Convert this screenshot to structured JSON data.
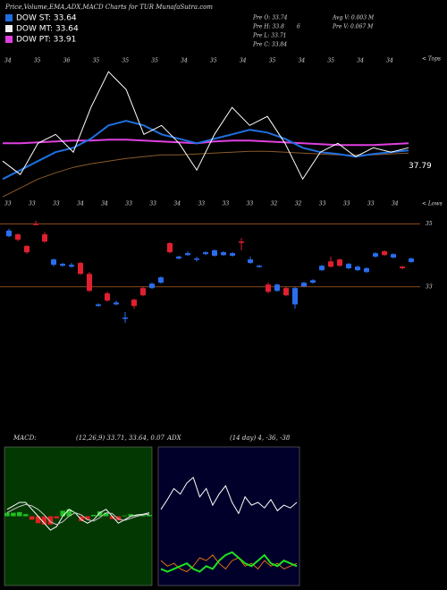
{
  "header": {
    "title": "Price,Volume,EMA,ADX,MACD Charts for TUR MunafaSutra.com",
    "legend": [
      {
        "label": "DOW ST: 33.64",
        "color": "#1f6fe0"
      },
      {
        "label": "DOW MT: 33.64",
        "color": "#f0f0f0"
      },
      {
        "label": "DOW PT: 33.91",
        "color": "#e040e0"
      }
    ],
    "info_left": [
      "Pre O: 33.74",
      "Pre H: 33.8",
      "Pre L: 33.71",
      "Pre C: 33.84"
    ],
    "info_right": [
      "Avg V: 0.003 M",
      "Pre V: 0.067 M"
    ],
    "info_mark": "6",
    "tops": "< Tops",
    "lows": "< Lows"
  },
  "chart_data": [
    {
      "type": "line",
      "ylim": [
        35.6,
        42.4
      ],
      "last_value": 37.79,
      "top_labels": [
        "34",
        "35",
        "36",
        "35",
        "35",
        "35",
        "34",
        "35",
        "34",
        "35",
        "34",
        "35",
        "34",
        "34"
      ],
      "bottom_labels": [
        "33",
        "33",
        "33",
        "34",
        "34",
        "33",
        "33",
        "34",
        "33",
        "33",
        "33",
        "32",
        "32",
        "33",
        "33",
        "33",
        "34"
      ],
      "series": [
        {
          "color": "#8b5a2b",
          "width": 1,
          "values": [
            35.99,
            36.39,
            36.79,
            37.07,
            37.31,
            37.47,
            37.59,
            37.71,
            37.79,
            37.87,
            37.87,
            37.91,
            37.95,
            37.99,
            38.03,
            38.03,
            37.99,
            37.95,
            37.91,
            37.87,
            37.87,
            37.87,
            37.91,
            37.95
          ]
        },
        {
          "color": "#e040e0",
          "width": 2,
          "values": [
            38.39,
            38.39,
            38.43,
            38.47,
            38.51,
            38.51,
            38.55,
            38.55,
            38.51,
            38.47,
            38.43,
            38.39,
            38.47,
            38.51,
            38.51,
            38.47,
            38.43,
            38.39,
            38.35,
            38.31,
            38.31,
            38.31,
            38.35,
            38.39
          ]
        },
        {
          "color": "#1f6fe0",
          "width": 2,
          "values": [
            36.79,
            37.19,
            37.59,
            37.99,
            38.19,
            38.59,
            39.19,
            39.39,
            39.19,
            38.79,
            38.59,
            38.39,
            38.59,
            38.79,
            38.99,
            38.87,
            38.59,
            38.19,
            37.99,
            37.91,
            37.79,
            37.91,
            37.99,
            38.07
          ]
        },
        {
          "color": "#ffffff",
          "width": 1,
          "values": [
            37.59,
            36.99,
            38.39,
            38.79,
            37.99,
            39.99,
            41.59,
            40.79,
            38.79,
            39.19,
            38.39,
            37.19,
            38.79,
            39.99,
            39.19,
            39.59,
            38.39,
            36.79,
            37.99,
            38.39,
            37.79,
            38.19,
            37.99,
            38.19
          ]
        }
      ]
    },
    {
      "type": "candlestick",
      "ylim": [
        31.6,
        35.3
      ],
      "yticks": [
        33,
        35
      ],
      "grid_color": "#8b4a1a",
      "up_color": "#2a6ef0",
      "down_color": "#e02030",
      "open": [
        34.61,
        34.67,
        34.3,
        35.01,
        34.67,
        33.7,
        33.67,
        33.64,
        33.76,
        33.41,
        32.39,
        32.79,
        32.44,
        31.99,
        32.59,
        32.96,
        32.96,
        33.13,
        34.39,
        33.9,
        34.01,
        33.87,
        34.04,
        33.99,
        34.01,
        33.99,
        34.44,
        33.76,
        33.64,
        33.07,
        32.87,
        32.96,
        32.44,
        33.01,
        33.13,
        33.53,
        33.81,
        33.87,
        33.59,
        33.53,
        33.47,
        33.96,
        34.13,
        33.93,
        33.64,
        33.79
      ],
      "close": [
        34.79,
        34.5,
        34.1,
        34.98,
        34.44,
        33.87,
        33.73,
        33.7,
        33.41,
        32.87,
        32.44,
        32.56,
        32.5,
        32.02,
        32.39,
        32.73,
        33.1,
        33.3,
        34.1,
        33.96,
        34.07,
        33.9,
        34.1,
        34.16,
        34.1,
        34.07,
        34.41,
        33.87,
        33.67,
        32.84,
        33.07,
        32.73,
        32.96,
        33.13,
        33.21,
        33.67,
        33.64,
        33.67,
        33.73,
        33.64,
        33.59,
        34.07,
        34.01,
        34.04,
        33.59,
        33.9
      ],
      "high": [
        34.85,
        34.7,
        34.33,
        35.1,
        34.75,
        33.9,
        33.76,
        33.76,
        33.79,
        33.47,
        32.47,
        32.84,
        32.56,
        32.2,
        32.62,
        32.99,
        33.13,
        33.33,
        34.42,
        33.99,
        34.13,
        33.96,
        34.13,
        34.19,
        34.13,
        34.1,
        34.55,
        33.96,
        33.7,
        33.13,
        33.1,
        32.99,
        32.99,
        33.16,
        33.24,
        33.7,
        33.96,
        33.9,
        33.76,
        33.67,
        33.62,
        34.1,
        34.16,
        34.07,
        33.67,
        33.93
      ],
      "low": [
        34.58,
        34.45,
        34.05,
        34.95,
        34.4,
        33.65,
        33.64,
        33.61,
        33.38,
        32.84,
        32.36,
        32.53,
        32.41,
        31.85,
        32.3,
        32.7,
        32.93,
        33.1,
        34.07,
        33.87,
        33.99,
        33.81,
        34.01,
        33.96,
        33.99,
        33.96,
        34.16,
        33.73,
        33.61,
        32.79,
        32.84,
        32.7,
        32.3,
        32.99,
        33.1,
        33.5,
        33.61,
        33.64,
        33.56,
        33.5,
        33.44,
        33.93,
        33.99,
        33.9,
        33.56,
        33.76
      ]
    },
    {
      "type": "line",
      "title": "MACD:",
      "subtitle": "(12,26,9) 33.71, 33.64, 0.07",
      "background": "#033803",
      "ylim": [
        -1,
        1
      ],
      "series": [
        {
          "color": "#ffffff",
          "width": 1,
          "values": [
            0.1,
            0.15,
            0.2,
            0.2,
            0.1,
            0,
            -0.1,
            -0.2,
            -0.15,
            0,
            0.1,
            0.05,
            -0.05,
            -0.1,
            -0.05,
            0.05,
            0.1,
            0,
            -0.1,
            -0.05,
            0,
            0.02,
            0.03,
            0.05
          ]
        },
        {
          "color": "#c8c8c8",
          "width": 1,
          "values": [
            0.05,
            0.1,
            0.14,
            0.17,
            0.15,
            0.1,
            0.02,
            -0.08,
            -0.12,
            -0.08,
            0,
            0.05,
            0.02,
            -0.05,
            -0.07,
            -0.02,
            0.05,
            0.04,
            -0.04,
            -0.06,
            -0.03,
            0,
            0.02,
            0.03
          ]
        }
      ],
      "histogram": {
        "up_color": "#20c020",
        "down_color": "#e02020",
        "values": [
          0.05,
          0.05,
          0.06,
          0.03,
          -0.05,
          -0.1,
          -0.12,
          -0.12,
          -0.03,
          0.08,
          0.1,
          0,
          -0.07,
          -0.05,
          0.02,
          0.07,
          0.05,
          -0.04,
          -0.06,
          0.01,
          0.03,
          0.02,
          0.01,
          0.02
        ]
      }
    },
    {
      "type": "line",
      "title": "ADX",
      "subtitle": "(14 day) 4, -36, -38",
      "background": "#00002a",
      "ylim": [
        0,
        100
      ],
      "series": [
        {
          "color": "#ffffff",
          "width": 1,
          "values": [
            55,
            62,
            70,
            66,
            74,
            78,
            64,
            70,
            58,
            66,
            72,
            60,
            52,
            64,
            58,
            60,
            56,
            62,
            54,
            58,
            56,
            60
          ]
        },
        {
          "color": "#e07010",
          "width": 1,
          "values": [
            18,
            14,
            16,
            12,
            10,
            14,
            20,
            18,
            22,
            16,
            12,
            18,
            20,
            14,
            16,
            12,
            18,
            14,
            16,
            12,
            14,
            16
          ]
        },
        {
          "color": "#20e020",
          "width": 2,
          "values": [
            12,
            10,
            12,
            14,
            16,
            12,
            10,
            14,
            12,
            18,
            22,
            24,
            20,
            16,
            14,
            18,
            22,
            16,
            14,
            18,
            16,
            14
          ]
        }
      ]
    }
  ]
}
